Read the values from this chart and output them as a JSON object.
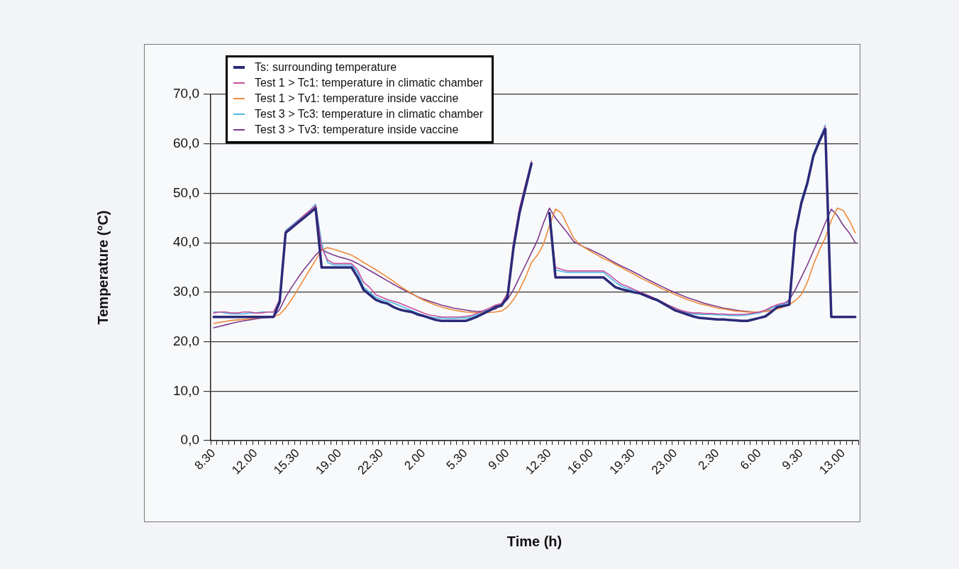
{
  "chart_data": {
    "type": "line",
    "xlabel": "Time (h)",
    "ylabel": "Temperature (°C)",
    "categories": [
      "8.30",
      null,
      null,
      null,
      null,
      null,
      null,
      "12.00",
      null,
      null,
      null,
      null,
      null,
      null,
      "15.30",
      null,
      null,
      null,
      null,
      null,
      null,
      "19.00",
      null,
      null,
      null,
      null,
      null,
      null,
      "22.30",
      null,
      null,
      null,
      null,
      null,
      null,
      "2.00",
      null,
      null,
      null,
      null,
      null,
      null,
      "5.30",
      null,
      null,
      null,
      null,
      null,
      null,
      "9.00",
      null,
      null,
      null,
      null,
      null,
      null,
      "12.30",
      null,
      null,
      null,
      null,
      null,
      null,
      "16.00",
      null,
      null,
      null,
      null,
      null,
      null,
      "19.30",
      null,
      null,
      null,
      null,
      null,
      null,
      "23.00",
      null,
      null,
      null,
      null,
      null,
      null,
      "2.30",
      null,
      null,
      null,
      null,
      null,
      null,
      "6.00",
      null,
      null,
      null,
      null,
      null,
      null,
      "9.30",
      null,
      null,
      null,
      null,
      null,
      null,
      "13.00",
      null,
      null
    ],
    "ylim": [
      0,
      70
    ],
    "yticks": [
      {
        "value": 0,
        "label": "0,0"
      },
      {
        "value": 10,
        "label": "10,0"
      },
      {
        "value": 20,
        "label": "20,0"
      },
      {
        "value": 30,
        "label": "30,0"
      },
      {
        "value": 40,
        "label": "40,0"
      },
      {
        "value": 50,
        "label": "50,0"
      },
      {
        "value": 60,
        "label": "60,0"
      },
      {
        "value": 70,
        "label": "70,0"
      }
    ],
    "grid": "y",
    "legend": "top left",
    "series": [
      {
        "name": "Ts: surrounding temperature",
        "color": "#2b2a78",
        "values": [
          25,
          25,
          25,
          25,
          25,
          25,
          25,
          25,
          25,
          25,
          25,
          28,
          42,
          43,
          44,
          45,
          46,
          47,
          35,
          35,
          35,
          35,
          35,
          35,
          33,
          30.5,
          29.5,
          28.5,
          28,
          27.7,
          27,
          26.5,
          26.2,
          26,
          25.5,
          25.2,
          24.8,
          24.4,
          24.2,
          24.2,
          24.2,
          24.2,
          24.2,
          24.6,
          25.1,
          25.7,
          26.3,
          27,
          27.3,
          29,
          39,
          46,
          51,
          56,
          null,
          null,
          46,
          33,
          33,
          33,
          33,
          33,
          33,
          33,
          33,
          33,
          32,
          31,
          30.6,
          30.3,
          30,
          29.8,
          29.3,
          28.8,
          28.4,
          27.7,
          27,
          26.3,
          25.9,
          25.5,
          25.1,
          24.8,
          24.7,
          24.6,
          24.5,
          24.5,
          24.4,
          24.3,
          24.2,
          24.2,
          24.5,
          24.8,
          25.1,
          26,
          27,
          27.2,
          27.5,
          42,
          48,
          52,
          57.5,
          60.5,
          63,
          25,
          25,
          25,
          25,
          25
        ]
      },
      {
        "name": "Test 1 > Tc1: temperature in climatic chamber",
        "color": "#c8509c",
        "values": [
          25.8,
          26,
          26,
          25.8,
          25.8,
          26,
          26,
          25.8,
          25.8,
          26,
          26,
          28.5,
          42.3,
          43.3,
          44.3,
          45.5,
          46.5,
          47.5,
          39,
          36.5,
          35.8,
          35.8,
          35.8,
          35.8,
          34.5,
          32,
          31,
          29.5,
          29,
          28.5,
          28.2,
          27.8,
          27.3,
          26.8,
          26.3,
          25.8,
          25.4,
          25.2,
          25,
          25,
          25,
          25,
          25.1,
          25.3,
          25.8,
          26.3,
          26.8,
          27.4,
          27.7,
          29.8,
          40,
          47,
          51.8,
          56.5,
          null,
          null,
          46,
          35,
          34.6,
          34.3,
          34.3,
          34.3,
          34.3,
          34.3,
          34.3,
          34.3,
          33.5,
          32.5,
          31.6,
          31.2,
          30.6,
          30.1,
          29.6,
          29.1,
          28.5,
          27.9,
          27.3,
          26.8,
          26.3,
          26,
          25.8,
          25.8,
          25.7,
          25.7,
          25.6,
          25.6,
          25.5,
          25.5,
          25.5,
          25.6,
          25.8,
          26,
          26.4,
          27,
          27.5,
          27.8,
          28.2,
          42,
          48.2,
          52.3,
          57.7,
          60.8,
          63.5,
          null,
          null,
          null,
          null,
          null
        ]
      },
      {
        "name": "Test 1 > Tv1: temperature inside vaccine",
        "color": "#ee8a3a",
        "values": [
          23.7,
          23.9,
          24.1,
          24.3,
          24.4,
          24.5,
          24.6,
          24.8,
          24.9,
          25,
          25.1,
          25.5,
          26.8,
          28.5,
          30.5,
          32.5,
          34.5,
          36.5,
          38.5,
          39,
          38.7,
          38.3,
          37.9,
          37.5,
          36.8,
          36,
          35.3,
          34.6,
          33.8,
          33,
          32.2,
          31.3,
          30.5,
          29.8,
          29,
          28.4,
          27.9,
          27.4,
          27,
          26.7,
          26.4,
          26.2,
          26,
          25.9,
          25.9,
          25.9,
          25.9,
          26,
          26.2,
          27,
          28.5,
          30.5,
          33,
          36,
          37.5,
          39.7,
          43.5,
          46.8,
          46,
          43.5,
          41,
          39.7,
          38.9,
          38.2,
          37.5,
          36.8,
          36.3,
          35.6,
          35,
          34.3,
          33.7,
          33,
          32.4,
          31.8,
          31.2,
          30.6,
          30.1,
          29.5,
          29,
          28.5,
          28.1,
          27.7,
          27.4,
          27.1,
          26.8,
          26.6,
          26.4,
          26.2,
          26.1,
          26,
          26,
          26,
          26.1,
          26.3,
          26.6,
          27,
          27.5,
          28.3,
          29.5,
          32,
          35.5,
          38.5,
          41,
          44.5,
          47,
          46.5,
          44.5,
          42
        ]
      },
      {
        "name": "Test 3 > Tc3: temperature in climatic chamber",
        "color": "#4ab8e6",
        "values": [
          26,
          26,
          25.8,
          25.6,
          25.6,
          25.6,
          25.8,
          25.8,
          26,
          26,
          26,
          28.5,
          42.5,
          43.5,
          44.5,
          45.5,
          46.5,
          47.8,
          40,
          36,
          35.5,
          35.5,
          35.5,
          35.5,
          34,
          31,
          30,
          29,
          28.5,
          28.2,
          27.8,
          27.3,
          26.8,
          26.3,
          25.8,
          25.3,
          25,
          24.8,
          24.8,
          24.7,
          24.7,
          24.8,
          24.8,
          25,
          25.5,
          26,
          26.5,
          27.2,
          27.5,
          29.5,
          39.5,
          46.5,
          51.5,
          56.3,
          null,
          null,
          46,
          34.5,
          34.2,
          34,
          34,
          34,
          34,
          34,
          34,
          34,
          33,
          32,
          31.2,
          30.8,
          30.3,
          29.8,
          29.3,
          28.8,
          28.2,
          27.6,
          27,
          26.5,
          26,
          25.8,
          25.6,
          25.5,
          25.5,
          25.5,
          25.4,
          25.4,
          25.3,
          25.3,
          25.3,
          25.4,
          25.6,
          25.8,
          26.2,
          26.8,
          27.3,
          27.6,
          28,
          42.5,
          48.5,
          52.5,
          58,
          61,
          63.8,
          null,
          null,
          null,
          null,
          null
        ]
      },
      {
        "name": "Test 3 > Tv3: temperature inside vaccine",
        "color": "#7b3a8c",
        "values": [
          22.8,
          23.1,
          23.4,
          23.7,
          24,
          24.2,
          24.4,
          24.6,
          24.8,
          24.9,
          25.1,
          26.5,
          29,
          31,
          32.8,
          34.5,
          36,
          37.5,
          38.7,
          38,
          37.5,
          37.1,
          36.8,
          36.4,
          35.8,
          35.1,
          34.4,
          33.7,
          33,
          32.3,
          31.6,
          30.9,
          30.3,
          29.7,
          29.1,
          28.6,
          28.2,
          27.8,
          27.4,
          27.1,
          26.8,
          26.6,
          26.4,
          26.2,
          26.1,
          26.2,
          26.3,
          26.6,
          27.5,
          28.5,
          30.5,
          33,
          35.5,
          38,
          40.5,
          44,
          47,
          45,
          43.5,
          42,
          40.3,
          39.6,
          39,
          38.5,
          37.9,
          37.3,
          36.6,
          35.9,
          35.3,
          34.7,
          34.1,
          33.5,
          32.8,
          32.2,
          31.6,
          31,
          30.4,
          29.9,
          29.4,
          28.9,
          28.5,
          28.1,
          27.7,
          27.4,
          27.1,
          26.8,
          26.6,
          26.4,
          26.2,
          26.1,
          26,
          26,
          26.1,
          26.4,
          26.8,
          27.5,
          28.5,
          30.5,
          33,
          35.5,
          38.3,
          41,
          44,
          46.8,
          45.5,
          43.5,
          42,
          40
        ]
      }
    ]
  }
}
